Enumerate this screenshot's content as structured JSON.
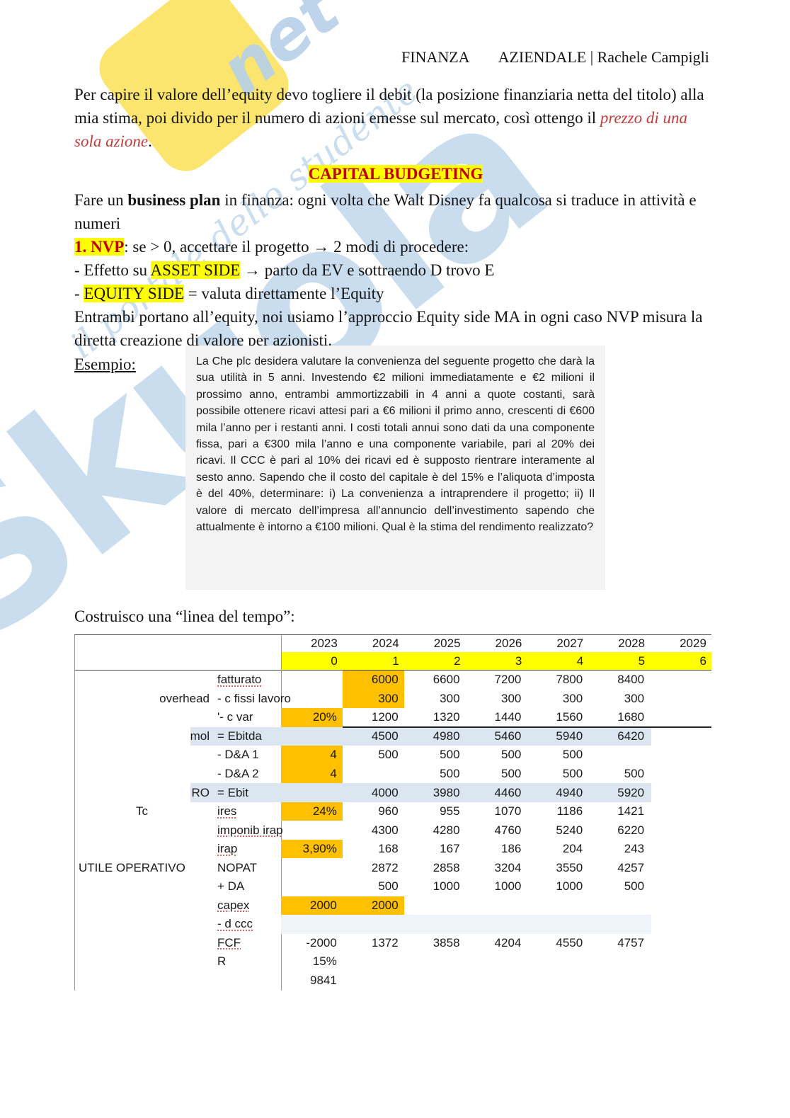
{
  "header": {
    "left": "FINANZA",
    "right": "AZIENDALE | Rachele Campigli"
  },
  "watermark": {
    "word": "Skuola",
    "net": "net",
    "script": "il portale dello studente",
    "blue": "#bdd5ec",
    "yellow": "#fbe467"
  },
  "colors": {
    "highlight_yellow": "#ffff00",
    "heading_red": "#c00000",
    "accent_red_italic": "#c43b3b",
    "cell_orange": "#ffc000",
    "row_lavender": "#dce6f1"
  },
  "intro": {
    "text": "Per capire il valore dell’equity devo togliere il debit (la posizione finanziaria netta del titolo) alla mia stima, poi divido per il numero di azioni emesse sul mercato, così ottengo il ",
    "highlight": "prezzo di una sola azione",
    "tail": "."
  },
  "capital": {
    "title": "CAPITAL BUDGETING"
  },
  "plan": {
    "pre": "Fare un ",
    "bold": "business plan",
    "post": " in finanza: ogni volta che Walt Disney fa qualcosa si traduce in attività e numeri"
  },
  "nvp": {
    "tag": "1. NVP",
    "rest": ": se > 0, accettare il progetto → 2 modi di procedere:"
  },
  "asset": {
    "pre": "- Effetto su ",
    "tag": "ASSET SIDE",
    "post": " → parto da EV e sottraendo D trovo E"
  },
  "equity": {
    "pre": "- ",
    "tag": "EQUITY SIDE",
    "post": " = valuta direttamente l’Equity"
  },
  "both": {
    "text": "Entrambi portano all’equity, noi usiamo l’approccio Equity side MA in ogni caso NVP misura la diretta creazione di valore per azionisti."
  },
  "esempio": {
    "label": "Esempio:",
    "box": "La Che plc desidera valutare la convenienza del seguente progetto che darà la sua utilità in 5 anni. Investendo €2 milioni immediatamente e €2 milioni il prossimo anno, entrambi ammortizzabili in 4 anni a quote costanti, sarà possibile ottenere ricavi attesi pari a €6 milioni il primo anno, crescenti di €600 mila l’anno per i restanti anni. I costi totali annui sono dati da una componente fissa, pari a €300 mila l’anno e una componente variabile, pari al 20% dei ricavi. Il CCC è pari al 10% dei ricavi ed è supposto rientrare interamente al sesto anno. Sapendo che il costo del capitale è del 15% e l’aliquota d’imposta è del 40%, determinare: i) La convenienza a intraprendere il progetto; ii) Il valore di mercato dell’impresa all’annuncio dell’investimento sapendo che attualmente è intorno a €100 milioni. Qual è la stima del rendimento realizzato?"
  },
  "timeline": {
    "label": "Costruisco una “linea del tempo”:"
  },
  "table": {
    "years": [
      "2023",
      "2024",
      "2025",
      "2026",
      "2027",
      "2028",
      "2029"
    ],
    "periods": [
      "0",
      "1",
      "2",
      "3",
      "4",
      "5",
      "6"
    ],
    "rows": [
      {
        "c1": "",
        "c2": "fatturato",
        "sq": true,
        "vals": [
          "",
          "6000",
          "6600",
          "7200",
          "7800",
          "8400",
          ""
        ],
        "orange": [
          1
        ]
      },
      {
        "c1": "overhead",
        "c2": "- c fissi lavoro",
        "vals": [
          "",
          "300",
          "300",
          "300",
          "300",
          "300",
          ""
        ],
        "orange": [
          1
        ]
      },
      {
        "c1": "",
        "c2": "'- c var",
        "vals": [
          "20%",
          "1200",
          "1320",
          "1440",
          "1560",
          "1680",
          ""
        ],
        "orange": [
          0
        ],
        "uline": true
      },
      {
        "c1": "mol",
        "c2": "= Ebitda",
        "fill": "lavender",
        "vals": [
          "",
          "4500",
          "4980",
          "5460",
          "5940",
          "6420",
          ""
        ]
      },
      {
        "c1": "",
        "c2": "- D&A 1",
        "vals": [
          "4",
          "500",
          "500",
          "500",
          "500",
          "",
          ""
        ],
        "orange": [
          0
        ]
      },
      {
        "c1": "",
        "c2": "- D&A 2",
        "vals": [
          "4",
          "",
          "500",
          "500",
          "500",
          "500",
          ""
        ],
        "orange": [
          0
        ]
      },
      {
        "c1": "RO",
        "c2": "= Ebit",
        "fill": "lavender",
        "vals": [
          "",
          "4000",
          "3980",
          "4460",
          "4940",
          "5920",
          ""
        ]
      },
      {
        "c1": "Tc",
        "c1a": "c",
        "c2": "ires",
        "sq": true,
        "vals": [
          "24%",
          "960",
          "955",
          "1070",
          "1186",
          "1421",
          ""
        ],
        "orange": [
          0
        ]
      },
      {
        "c1": "",
        "c2": "imponib irap",
        "sq": true,
        "vals": [
          "",
          "4300",
          "4280",
          "4760",
          "5240",
          "6220",
          ""
        ]
      },
      {
        "c1": "",
        "c2": "irap",
        "sq": true,
        "vals": [
          "3,90%",
          "168",
          "167",
          "186",
          "204",
          "243",
          ""
        ],
        "orange": [
          0
        ]
      },
      {
        "c1": "UTILE OPERATIVO",
        "c1a": "l",
        "c2": "NOPAT",
        "vals": [
          "",
          "2872",
          "2858",
          "3204",
          "3550",
          "4257",
          ""
        ]
      },
      {
        "c1": "",
        "c2": "+ DA",
        "vals": [
          "",
          "500",
          "1000",
          "1000",
          "1000",
          "500",
          ""
        ]
      },
      {
        "c1": "",
        "c2": "capex",
        "sq": true,
        "vals": [
          "2000",
          "2000",
          "",
          "",
          "",
          "",
          ""
        ],
        "orange": [
          0,
          1
        ]
      },
      {
        "c1": "",
        "c2": "- d ccc",
        "sq": true,
        "fill": "faint",
        "vals": [
          "",
          "",
          "",
          "",
          "",
          "",
          ""
        ]
      },
      {
        "c1": "",
        "c2": "FCF",
        "sq": true,
        "vals": [
          "-2000",
          "1372",
          "3858",
          "4204",
          "4550",
          "4757",
          ""
        ]
      },
      {
        "c1": "",
        "c2": "R",
        "vals": [
          "15%",
          "",
          "",
          "",
          "",
          "",
          ""
        ]
      },
      {
        "c1": "",
        "c2": "",
        "vals": [
          "9841",
          "",
          "",
          "",
          "",
          "",
          ""
        ]
      }
    ]
  }
}
